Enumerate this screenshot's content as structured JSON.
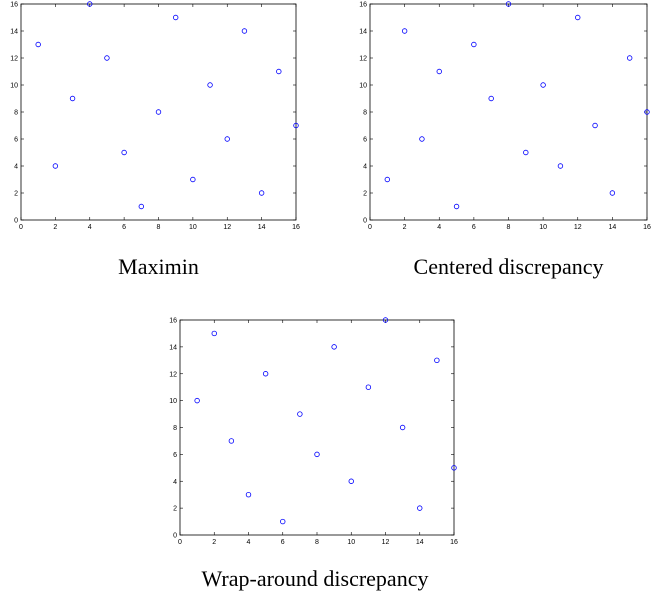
{
  "chart_data": [
    {
      "type": "scatter",
      "caption": "Maximin",
      "xlim": [
        0,
        16
      ],
      "ylim": [
        0,
        16
      ],
      "xticks": [
        0,
        2,
        4,
        6,
        8,
        10,
        12,
        14,
        16
      ],
      "yticks": [
        0,
        2,
        4,
        6,
        8,
        10,
        12,
        14,
        16
      ],
      "grid": false,
      "marker_color": "#0000ff",
      "points": [
        {
          "x": 1,
          "y": 13
        },
        {
          "x": 2,
          "y": 4
        },
        {
          "x": 3,
          "y": 9
        },
        {
          "x": 4,
          "y": 16
        },
        {
          "x": 5,
          "y": 12
        },
        {
          "x": 6,
          "y": 5
        },
        {
          "x": 7,
          "y": 1
        },
        {
          "x": 8,
          "y": 8
        },
        {
          "x": 9,
          "y": 15
        },
        {
          "x": 10,
          "y": 3
        },
        {
          "x": 11,
          "y": 10
        },
        {
          "x": 12,
          "y": 6
        },
        {
          "x": 13,
          "y": 14
        },
        {
          "x": 14,
          "y": 2
        },
        {
          "x": 15,
          "y": 11
        },
        {
          "x": 16,
          "y": 7
        }
      ]
    },
    {
      "type": "scatter",
      "caption": "Centered discrepancy",
      "xlim": [
        0,
        16
      ],
      "ylim": [
        0,
        16
      ],
      "xticks": [
        0,
        2,
        4,
        6,
        8,
        10,
        12,
        14,
        16
      ],
      "yticks": [
        0,
        2,
        4,
        6,
        8,
        10,
        12,
        14,
        16
      ],
      "grid": false,
      "marker_color": "#0000ff",
      "points": [
        {
          "x": 1,
          "y": 3
        },
        {
          "x": 2,
          "y": 14
        },
        {
          "x": 3,
          "y": 6
        },
        {
          "x": 4,
          "y": 11
        },
        {
          "x": 5,
          "y": 1
        },
        {
          "x": 6,
          "y": 13
        },
        {
          "x": 7,
          "y": 9
        },
        {
          "x": 8,
          "y": 16
        },
        {
          "x": 9,
          "y": 5
        },
        {
          "x": 10,
          "y": 10
        },
        {
          "x": 11,
          "y": 4
        },
        {
          "x": 12,
          "y": 15
        },
        {
          "x": 13,
          "y": 7
        },
        {
          "x": 14,
          "y": 2
        },
        {
          "x": 15,
          "y": 12
        },
        {
          "x": 16,
          "y": 8
        }
      ]
    },
    {
      "type": "scatter",
      "caption": "Wrap-around discrepancy",
      "xlim": [
        0,
        16
      ],
      "ylim": [
        0,
        16
      ],
      "xticks": [
        0,
        2,
        4,
        6,
        8,
        10,
        12,
        14,
        16
      ],
      "yticks": [
        0,
        2,
        4,
        6,
        8,
        10,
        12,
        14,
        16
      ],
      "grid": false,
      "marker_color": "#0000ff",
      "points": [
        {
          "x": 1,
          "y": 10
        },
        {
          "x": 2,
          "y": 15
        },
        {
          "x": 3,
          "y": 7
        },
        {
          "x": 4,
          "y": 3
        },
        {
          "x": 5,
          "y": 12
        },
        {
          "x": 6,
          "y": 1
        },
        {
          "x": 7,
          "y": 9
        },
        {
          "x": 8,
          "y": 6
        },
        {
          "x": 9,
          "y": 14
        },
        {
          "x": 10,
          "y": 4
        },
        {
          "x": 11,
          "y": 11
        },
        {
          "x": 12,
          "y": 16
        },
        {
          "x": 13,
          "y": 8
        },
        {
          "x": 14,
          "y": 2
        },
        {
          "x": 15,
          "y": 13
        },
        {
          "x": 16,
          "y": 5
        }
      ]
    }
  ]
}
